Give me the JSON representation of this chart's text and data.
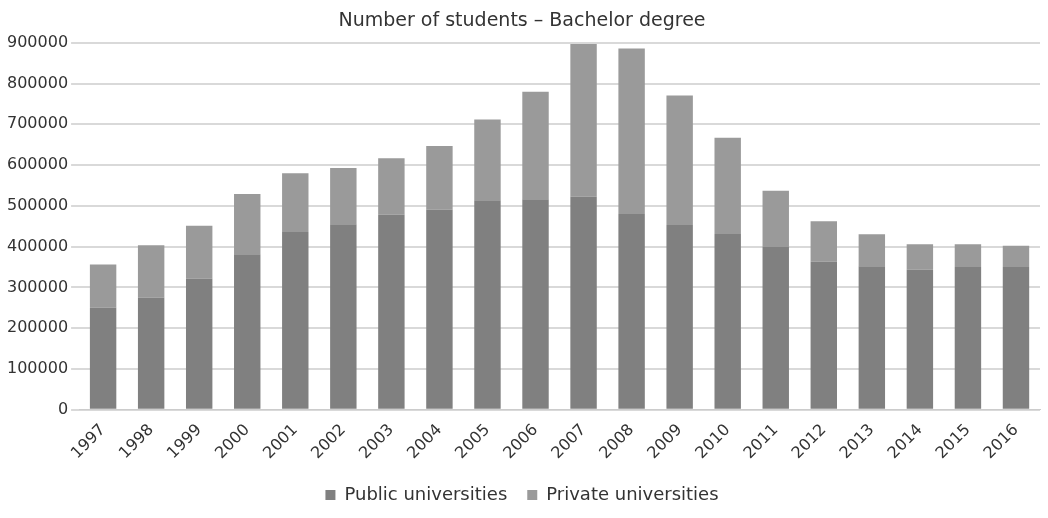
{
  "chart_data": {
    "type": "bar",
    "title": "Number of students – Bachelor degree",
    "stacked": true,
    "categories": [
      "1997",
      "1998",
      "1999",
      "2000",
      "2001",
      "2002",
      "2003",
      "2004",
      "2005",
      "2006",
      "2007",
      "2008",
      "2009",
      "2010",
      "2011",
      "2012",
      "2013",
      "2014",
      "2015",
      "2016"
    ],
    "series": [
      {
        "name": "Public universities",
        "color": "#808080",
        "values": [
          250000,
          275000,
          322000,
          381000,
          436000,
          455000,
          478000,
          491000,
          514000,
          516000,
          523000,
          480000,
          453000,
          431000,
          399000,
          363000,
          352000,
          343000,
          350000,
          350000
        ]
      },
      {
        "name": "Private universities",
        "color": "#9a9a9a",
        "values": [
          106000,
          128000,
          129000,
          148000,
          144000,
          138000,
          139000,
          156000,
          198000,
          264000,
          374000,
          406000,
          318000,
          236000,
          138000,
          99000,
          78000,
          63000,
          56000,
          52000
        ]
      }
    ],
    "ylim": [
      0,
      900000
    ],
    "yticks": [
      0,
      100000,
      200000,
      300000,
      400000,
      500000,
      600000,
      700000,
      800000,
      900000
    ],
    "grid": "y",
    "legend": "bottom"
  }
}
